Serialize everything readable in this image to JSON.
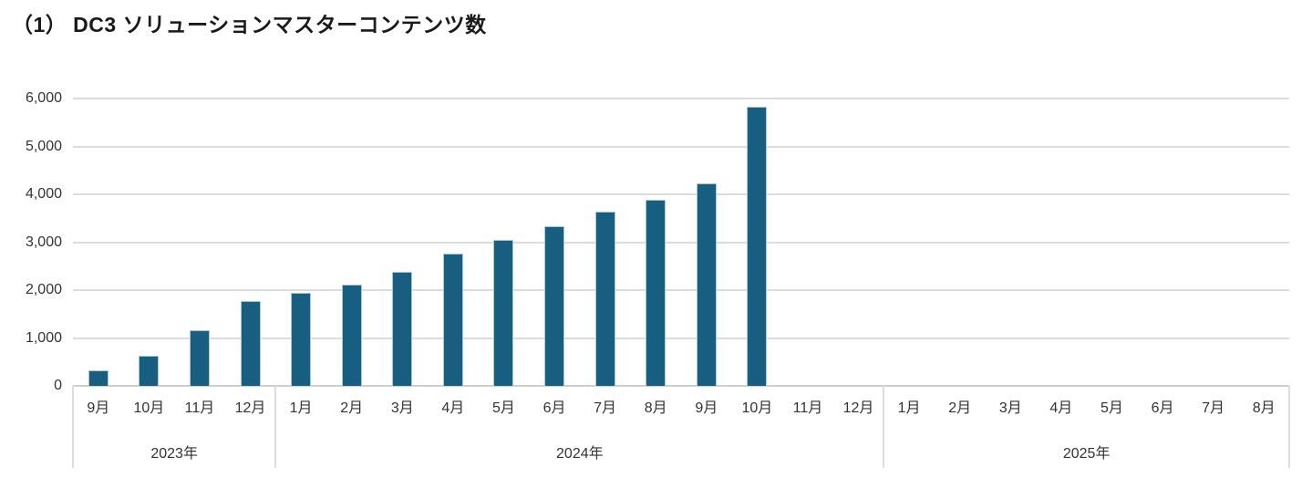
{
  "title": "（1） DC3 ソリューションマスターコンテンツ数",
  "chart_data": {
    "type": "bar",
    "title": "（1） DC3 ソリューションマスターコンテンツ数",
    "xlabel": "",
    "ylabel": "",
    "ylim": [
      0,
      6000
    ],
    "ytick_interval": 1000,
    "ytick_labels": [
      "0",
      "1,000",
      "2,000",
      "3,000",
      "4,000",
      "5,000",
      "6,000"
    ],
    "grid": true,
    "legend": "none",
    "colors": {
      "bar_fill": "#175E80",
      "bar_border": "#A9C9DB",
      "gridline": "#DCDCDC",
      "axis_line": "#CFCFCF",
      "text": "#333333"
    },
    "groups": [
      {
        "year_label": "2023年",
        "months": [
          "9月",
          "10月",
          "11月",
          "12月"
        ],
        "values": [
          320,
          630,
          1160,
          1780
        ]
      },
      {
        "year_label": "2024年",
        "months": [
          "1月",
          "2月",
          "3月",
          "4月",
          "5月",
          "6月",
          "7月",
          "8月",
          "9月",
          "10月",
          "11月",
          "12月"
        ],
        "values": [
          1940,
          2120,
          2380,
          2770,
          3040,
          3330,
          3640,
          3880,
          4220,
          5820,
          null,
          null
        ]
      },
      {
        "year_label": "2025年",
        "months": [
          "1月",
          "2月",
          "3月",
          "4月",
          "5月",
          "6月",
          "7月",
          "8月"
        ],
        "values": [
          null,
          null,
          null,
          null,
          null,
          null,
          null,
          null
        ]
      }
    ]
  }
}
